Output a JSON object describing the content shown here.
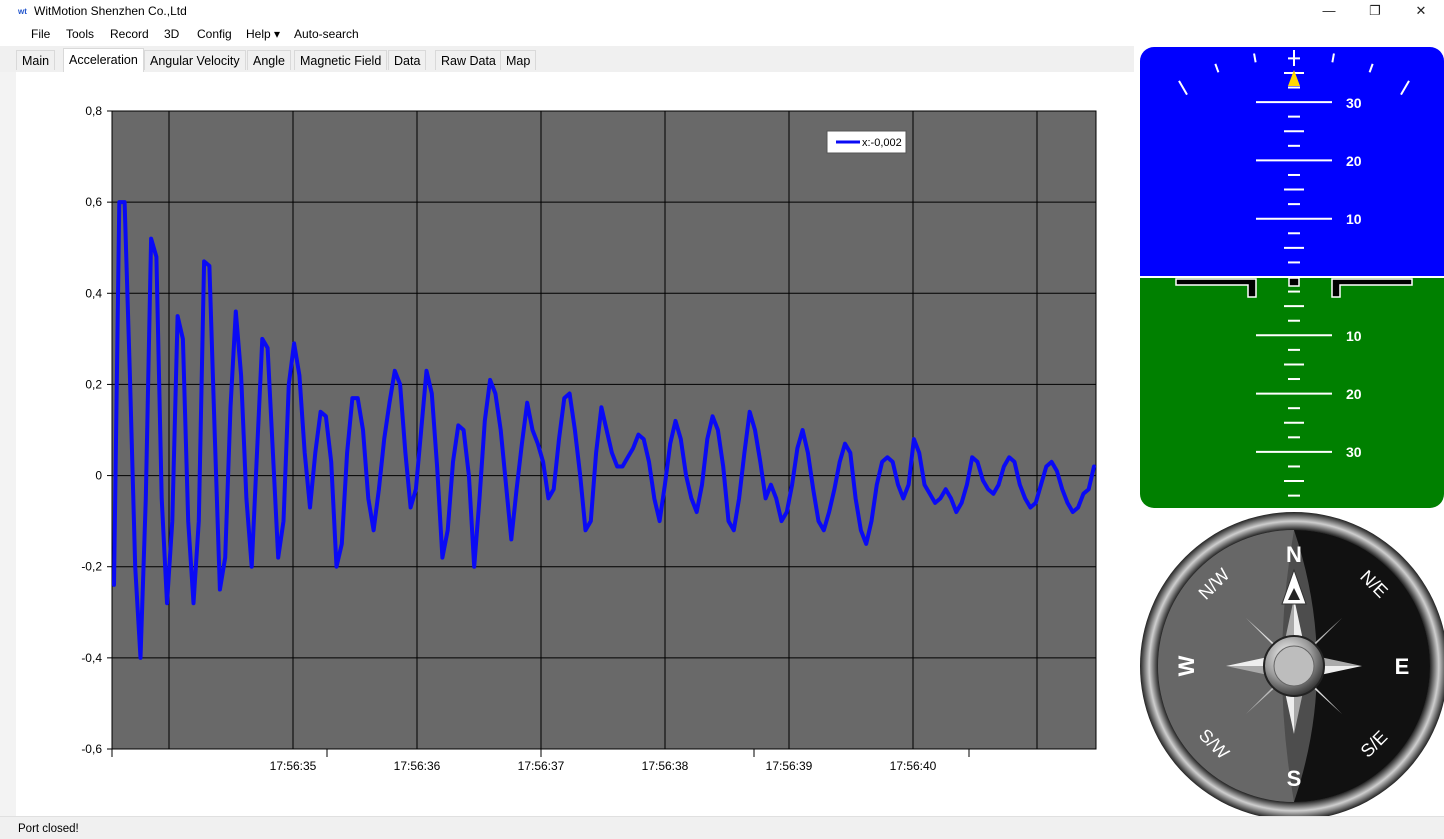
{
  "window": {
    "title": "WitMotion Shenzhen Co.,Ltd",
    "logo_text": "wt",
    "minimize": "—",
    "restore": "❐",
    "close": "✕"
  },
  "menu": [
    "File",
    "Tools",
    "Record",
    "3D",
    "Config",
    "Help ▾",
    "Auto-search"
  ],
  "tabs": [
    {
      "label": "Main"
    },
    {
      "label": "Acceleration",
      "active": true
    },
    {
      "label": "Angular Velocity"
    },
    {
      "label": "Angle"
    },
    {
      "label": "Magnetic Field"
    },
    {
      "label": "Data"
    },
    {
      "label": "Raw Data"
    },
    {
      "label": "Map"
    }
  ],
  "status": "Port closed!",
  "chart_data": {
    "type": "line",
    "ylim": [
      -0.6,
      0.8
    ],
    "yticks": [
      "0,8",
      "0,6",
      "0,4",
      "0,2",
      "0",
      "-0,2",
      "-0,4",
      "-0,6"
    ],
    "xticks": [
      "17:56:35",
      "17:56:36",
      "17:56:37",
      "17:56:38",
      "17:56:39",
      "17:56:40"
    ],
    "legend": "x:-0,002",
    "legend_position": "top-right",
    "grid": true,
    "plot_background": "#696969",
    "line_color": "#0a0af5",
    "series": [
      {
        "values": [
          -0.24,
          0.6,
          0.6,
          0.22,
          -0.2,
          -0.4,
          -0.05,
          0.52,
          0.48,
          -0.05,
          -0.28,
          -0.1,
          0.35,
          0.3,
          -0.1,
          -0.28,
          -0.1,
          0.47,
          0.46,
          0.1,
          -0.25,
          -0.18,
          0.15,
          0.36,
          0.22,
          -0.05,
          -0.2,
          0.05,
          0.3,
          0.28,
          0.05,
          -0.18,
          -0.1,
          0.2,
          0.29,
          0.22,
          0.05,
          -0.07,
          0.05,
          0.14,
          0.13,
          0.03,
          -0.2,
          -0.15,
          0.05,
          0.17,
          0.17,
          0.1,
          -0.05,
          -0.12,
          -0.03,
          0.08,
          0.16,
          0.23,
          0.2,
          0.05,
          -0.07,
          -0.03,
          0.1,
          0.23,
          0.18,
          0.02,
          -0.18,
          -0.12,
          0.03,
          0.11,
          0.1,
          0.0,
          -0.2,
          -0.05,
          0.12,
          0.21,
          0.18,
          0.1,
          -0.02,
          -0.14,
          -0.03,
          0.07,
          0.16,
          0.1,
          0.07,
          0.03,
          -0.05,
          -0.03,
          0.08,
          0.17,
          0.18,
          0.1,
          0.0,
          -0.12,
          -0.1,
          0.05,
          0.15,
          0.1,
          0.05,
          0.02,
          0.02,
          0.04,
          0.06,
          0.09,
          0.08,
          0.03,
          -0.05,
          -0.1,
          -0.02,
          0.07,
          0.12,
          0.08,
          0.0,
          -0.05,
          -0.08,
          -0.02,
          0.08,
          0.13,
          0.1,
          0.02,
          -0.1,
          -0.12,
          -0.05,
          0.05,
          0.14,
          0.1,
          0.03,
          -0.05,
          -0.02,
          -0.05,
          -0.1,
          -0.08,
          -0.02,
          0.06,
          0.1,
          0.05,
          -0.03,
          -0.1,
          -0.12,
          -0.08,
          -0.03,
          0.03,
          0.07,
          0.05,
          -0.05,
          -0.12,
          -0.15,
          -0.1,
          -0.02,
          0.03,
          0.04,
          0.03,
          -0.02,
          -0.05,
          -0.02,
          0.08,
          0.05,
          -0.02,
          -0.04,
          -0.06,
          -0.05,
          -0.03,
          -0.05,
          -0.08,
          -0.06,
          -0.02,
          0.04,
          0.03,
          -0.01,
          -0.03,
          -0.04,
          -0.02,
          0.02,
          0.04,
          0.03,
          -0.02,
          -0.05,
          -0.07,
          -0.06,
          -0.02,
          0.02,
          0.03,
          0.01,
          -0.03,
          -0.06,
          -0.08,
          -0.07,
          -0.04,
          -0.03,
          0.02
        ]
      }
    ]
  },
  "attitude_indicator": {
    "sky_color": "#0000ff",
    "ground_color": "#008000",
    "pitch_labels_up": [
      "30",
      "20",
      "10"
    ],
    "pitch_labels_down": [
      "10",
      "20",
      "30"
    ]
  },
  "compass": {
    "n": "N",
    "s": "S",
    "e": "E",
    "w": "W",
    "ne": "N/E",
    "nw": "N/W",
    "se": "S/E",
    "sw": "S/W"
  }
}
